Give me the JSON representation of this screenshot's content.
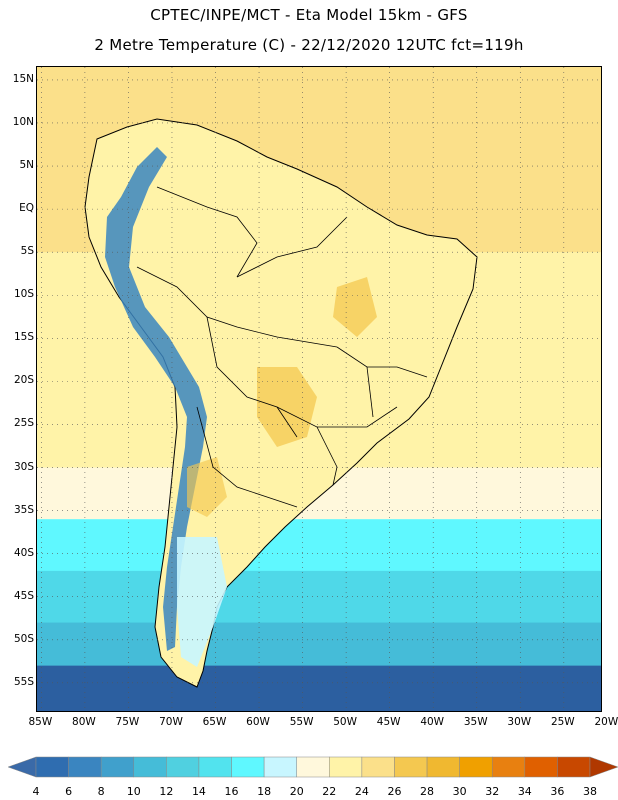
{
  "header": {
    "title_line1": "CPTEC/INPE/MCT -  Eta Model 15km - GFS",
    "title_line2": "2 Metre Temperature (C) - 22/12/2020 12UTC fct=119h"
  },
  "map": {
    "lat_ticks": [
      "15N",
      "10N",
      "5N",
      "EQ",
      "5S",
      "10S",
      "15S",
      "20S",
      "25S",
      "30S",
      "35S",
      "40S",
      "45S",
      "50S",
      "55S"
    ],
    "lat_values": [
      15,
      10,
      5,
      0,
      -5,
      -10,
      -15,
      -20,
      -25,
      -30,
      -35,
      -40,
      -45,
      -50,
      -55
    ],
    "lon_ticks": [
      "85W",
      "80W",
      "75W",
      "70W",
      "65W",
      "60W",
      "55W",
      "50W",
      "45W",
      "40W",
      "35W",
      "30W",
      "25W",
      "20W"
    ],
    "lon_values": [
      -85,
      -80,
      -75,
      -70,
      -65,
      -60,
      -55,
      -50,
      -45,
      -40,
      -35,
      -30,
      -25,
      -20
    ],
    "extent": {
      "lon": [
        -85.5,
        -20.5
      ],
      "lat": [
        -58.5,
        16.5
      ]
    },
    "grid": "dotted",
    "ocean_bands": [
      {
        "lat_from": 16.5,
        "lat_to": -5,
        "color": "#fbe08a"
      },
      {
        "lat_from": -5,
        "lat_to": -10,
        "color": "#fff3a8"
      },
      {
        "lat_from": -10,
        "lat_to": -30,
        "color": "#fff3a8"
      },
      {
        "lat_from": -30,
        "lat_to": -36,
        "color": "#fff8dc"
      },
      {
        "lat_from": -36,
        "lat_to": -42,
        "color": "#5ff8ff"
      },
      {
        "lat_from": -42,
        "lat_to": -48,
        "color": "#4fd8e8"
      },
      {
        "lat_from": -48,
        "lat_to": -53,
        "color": "#45bcd8"
      },
      {
        "lat_from": -53,
        "lat_to": -58.5,
        "color": "#2c5fa0"
      }
    ]
  },
  "colorbar": {
    "labels": [
      "4",
      "6",
      "8",
      "10",
      "12",
      "14",
      "16",
      "18",
      "20",
      "22",
      "24",
      "26",
      "28",
      "30",
      "32",
      "34",
      "36",
      "38"
    ],
    "colors": [
      "#3a6aa8",
      "#2f6db0",
      "#3a85c0",
      "#40a0cc",
      "#45bcd8",
      "#50d0e0",
      "#52e3ee",
      "#5ff8ff",
      "#c8f6ff",
      "#fff8dc",
      "#fff3a8",
      "#fbe08a",
      "#f4c850",
      "#f0b830",
      "#f0a000",
      "#e88010",
      "#e06000",
      "#c84800",
      "#b03800"
    ]
  }
}
